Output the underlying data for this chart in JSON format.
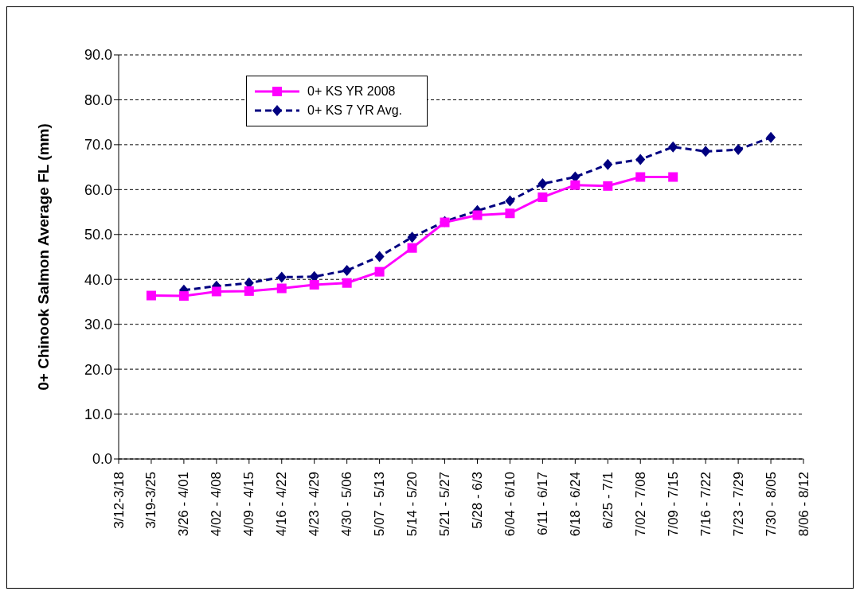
{
  "chart_data": {
    "type": "line",
    "ylabel": "0+ Chinook Salmon Average FL (mm)",
    "categories": [
      "3/12-3/18",
      "3/19-3/25",
      "3/26 - 4/01",
      "4/02 - 4/08",
      "4/09 - 4/15",
      "4/16 - 4/22",
      "4/23 - 4/29",
      "4/30 - 5/06",
      "5/07 - 5/13",
      "5/14 - 5/20",
      "5/21 - 5/27",
      "5/28 - 6/3",
      "6/04 - 6/10",
      "6/11 - 6/17",
      "6/18 - 6/24",
      "6/25 - 7/1",
      "7/02 - 7/08",
      "7/09 - 7/15",
      "7/16 - 7/22",
      "7/23 - 7/29",
      "7/30 - 8/05",
      "8/06 - 8/12"
    ],
    "series": [
      {
        "name": "0+ KS YR 2008",
        "color": "#ff00ff",
        "marker": "square",
        "line_style": "solid",
        "values": [
          null,
          36.4,
          36.3,
          37.3,
          37.4,
          38.0,
          38.8,
          39.2,
          41.7,
          47.0,
          52.7,
          54.3,
          54.7,
          58.3,
          61.0,
          60.8,
          62.8,
          62.8,
          null,
          null,
          null,
          null
        ]
      },
      {
        "name": "0+ KS 7 YR Avg.",
        "color": "#000080",
        "marker": "diamond",
        "line_style": "dashed",
        "values": [
          null,
          null,
          37.6,
          38.5,
          39.2,
          40.5,
          40.6,
          42.0,
          45.1,
          49.4,
          52.9,
          55.3,
          57.5,
          61.3,
          62.8,
          65.6,
          66.7,
          69.5,
          68.5,
          68.9,
          71.6,
          null
        ]
      }
    ],
    "ylim": [
      0,
      90
    ],
    "yticks": [
      {
        "value": 0,
        "label": "0.0"
      },
      {
        "value": 10,
        "label": "10.0"
      },
      {
        "value": 20,
        "label": "20.0"
      },
      {
        "value": 30,
        "label": "30.0"
      },
      {
        "value": 40,
        "label": "40.0"
      },
      {
        "value": 50,
        "label": "50.0"
      },
      {
        "value": 60,
        "label": "60.0"
      },
      {
        "value": 70,
        "label": "70.0"
      },
      {
        "value": 80,
        "label": "80.0"
      },
      {
        "value": 90,
        "label": "90.0"
      }
    ],
    "grid": "y",
    "legend": "top left"
  }
}
